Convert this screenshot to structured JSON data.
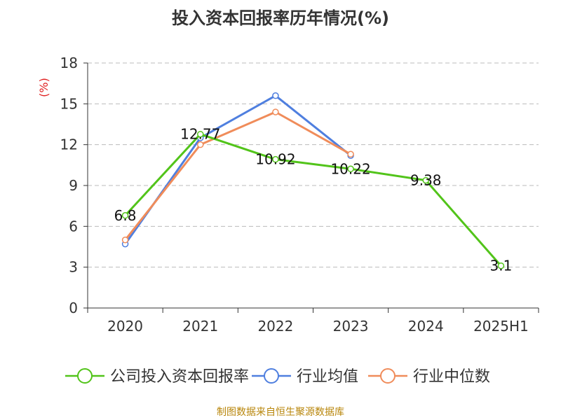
{
  "chart_data": {
    "type": "line",
    "title": "投入资本回报率历年情况(%)",
    "ylabel": "(%)",
    "xlabel": "",
    "categories": [
      "2020",
      "2021",
      "2022",
      "2023",
      "2024",
      "2025H1"
    ],
    "ylim": [
      0,
      18
    ],
    "yticks": [
      0,
      3,
      6,
      9,
      12,
      15,
      18
    ],
    "grid": true,
    "legend_position": "bottom",
    "series": [
      {
        "name": "公司投入资本回报率",
        "color": "#52c41a",
        "values": [
          6.8,
          12.77,
          10.92,
          10.22,
          9.38,
          3.1
        ],
        "labels": [
          "6.8",
          "12.77",
          "10.92",
          "10.22",
          "9.38",
          "3.1"
        ]
      },
      {
        "name": "行业均值",
        "color": "#4f7fdf",
        "values": [
          4.7,
          12.5,
          15.6,
          11.2,
          null,
          null
        ]
      },
      {
        "name": "行业中位数",
        "color": "#f08c5a",
        "values": [
          5.0,
          12.0,
          14.4,
          11.3,
          null,
          null
        ]
      }
    ]
  },
  "source": "制图数据来自恒生聚源数据库"
}
